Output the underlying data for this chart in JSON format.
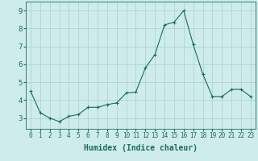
{
  "x": [
    0,
    1,
    2,
    3,
    4,
    5,
    6,
    7,
    8,
    9,
    10,
    11,
    12,
    13,
    14,
    15,
    16,
    17,
    18,
    19,
    20,
    21,
    22,
    23
  ],
  "y": [
    4.5,
    3.3,
    3.0,
    2.8,
    3.1,
    3.2,
    3.6,
    3.6,
    3.75,
    3.85,
    4.4,
    4.45,
    5.8,
    6.55,
    8.2,
    8.35,
    9.0,
    7.1,
    5.45,
    4.2,
    4.2,
    4.6,
    4.6,
    4.2
  ],
  "line_color": "#1a6b5a",
  "marker": "+",
  "markersize": 3,
  "linewidth": 0.8,
  "xlabel": "Humidex (Indice chaleur)",
  "xlabel_fontsize": 7,
  "ylabel": "",
  "title": "",
  "xlim": [
    -0.5,
    23.5
  ],
  "ylim": [
    2.4,
    9.5
  ],
  "yticks": [
    3,
    4,
    5,
    6,
    7,
    8,
    9
  ],
  "xticks": [
    0,
    1,
    2,
    3,
    4,
    5,
    6,
    7,
    8,
    9,
    10,
    11,
    12,
    13,
    14,
    15,
    16,
    17,
    18,
    19,
    20,
    21,
    22,
    23
  ],
  "xtick_fontsize": 5.5,
  "ytick_fontsize": 6.5,
  "bg_color": "#ceecea",
  "grid_color": "#aacfcc",
  "grid_linewidth": 0.5,
  "spine_color": "#1a6b5a"
}
